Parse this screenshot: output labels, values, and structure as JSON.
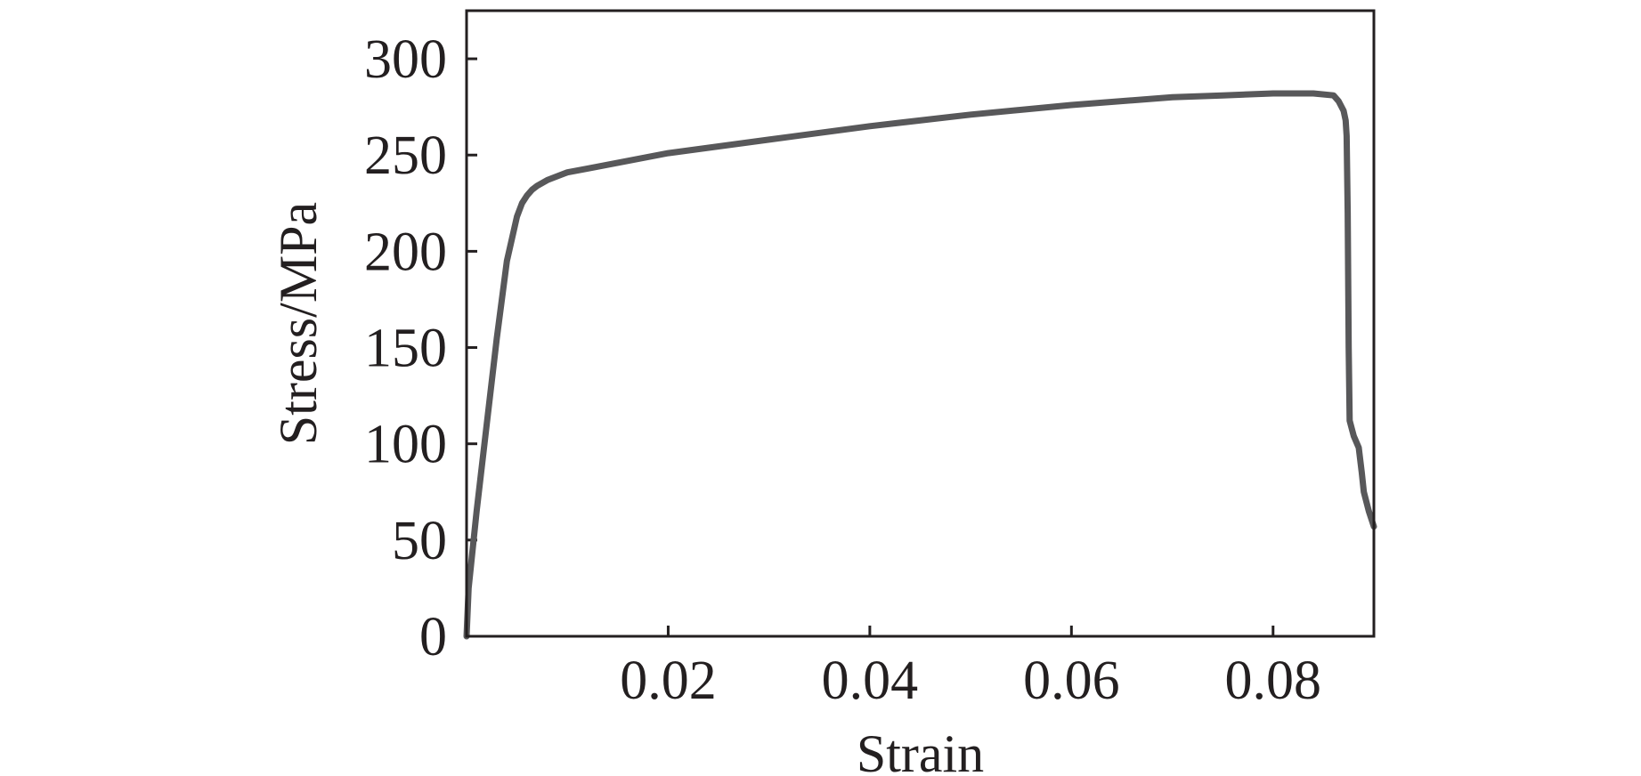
{
  "chart_data": {
    "type": "line",
    "title": "",
    "xlabel": "Strain",
    "ylabel": "Stress/MPa",
    "xlim": [
      0,
      0.09
    ],
    "ylim": [
      0,
      325
    ],
    "x_ticks": [
      0.02,
      0.04,
      0.06,
      0.08
    ],
    "x_tick_labels": [
      "0.02",
      "0.04",
      "0.06",
      "0.08"
    ],
    "y_ticks": [
      0,
      50,
      100,
      150,
      200,
      250,
      300
    ],
    "y_tick_labels": [
      "0",
      "50",
      "100",
      "150",
      "200",
      "250",
      "300"
    ],
    "grid": false,
    "legend": "none",
    "line_color": "#58585a",
    "series": [
      {
        "x": [
          0,
          0.0002,
          0.001,
          0.002,
          0.003,
          0.004,
          0.005,
          0.0055,
          0.006,
          0.0065,
          0.007,
          0.008,
          0.009,
          0.01,
          0.012,
          0.015,
          0.02,
          0.03,
          0.04,
          0.05,
          0.06,
          0.07,
          0.075,
          0.08,
          0.084,
          0.086,
          0.0865,
          0.087,
          0.0872,
          0.0873,
          0.0874,
          0.0875,
          0.0876,
          0.0878,
          0.088,
          0.0885,
          0.0888,
          0.089,
          0.0895,
          0.09
        ],
        "y": [
          0,
          25,
          65,
          110,
          155,
          195,
          218,
          225,
          229,
          232,
          234,
          237,
          239,
          241,
          243,
          246,
          251,
          258,
          265,
          271,
          276,
          280,
          281,
          282,
          282,
          281,
          278,
          273,
          268,
          260,
          220,
          150,
          112,
          108,
          104,
          98,
          85,
          75,
          65,
          57
        ]
      }
    ]
  }
}
